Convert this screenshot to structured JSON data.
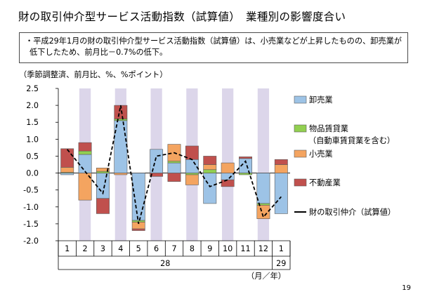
{
  "title": "財の取引仲介型サービス活動指数（試算値）　業種別の影響度合い",
  "summary": "・平成29年1月の財の取引仲介型サービス活動指数（試算値）は、小売業などが上昇したものの、卸売業が低下したため、前月比－0.7%の低下。",
  "unit_note": "（季節調整済、前月比、%、%ポイント）",
  "page_number": "19",
  "colors": {
    "wholesale": "#9dc3e6",
    "goods_leasing": "#92d050",
    "retail": "#f4a460",
    "real_estate": "#c0504d",
    "total_line": "#000000",
    "shade": "#dcd6ea",
    "border": "#5a5a5a"
  },
  "chart_data": {
    "type": "bar",
    "stacked": true,
    "categories": [
      "1",
      "2",
      "3",
      "4",
      "5",
      "6",
      "7",
      "8",
      "9",
      "10",
      "11",
      "12",
      "1"
    ],
    "year_labels": [
      {
        "label": "28",
        "span": [
          0,
          11
        ]
      },
      {
        "label": "29",
        "span": [
          12,
          12
        ]
      }
    ],
    "x_unit_label": "（月／年）",
    "ylim": [
      -2.0,
      2.5
    ],
    "yticks": [
      "2.5",
      "2.0",
      "1.5",
      "1.0",
      "0.5",
      "0.0",
      "-0.5",
      "-1.0",
      "-1.5",
      "-2.0"
    ],
    "shaded_categories": [
      1,
      3,
      5,
      7,
      9,
      11
    ],
    "series": [
      {
        "name": "卸売業",
        "type": "bar",
        "color_key": "wholesale",
        "values": [
          -0.05,
          0.55,
          -0.75,
          1.55,
          -1.4,
          0.7,
          0.3,
          0.4,
          -0.9,
          -0.2,
          0.43,
          -0.9,
          -1.2
        ]
      },
      {
        "name": "物品賃貸業",
        "name_extra": "（自動車賃貸業を含む）",
        "type": "bar",
        "color_key": "goods_leasing",
        "values": [
          0.02,
          0.1,
          0.05,
          0.05,
          -0.05,
          0.0,
          0.05,
          -0.05,
          0.1,
          0.0,
          -0.05,
          -0.05,
          0.0
        ]
      },
      {
        "name": "小売業",
        "type": "bar",
        "color_key": "retail",
        "values": [
          0.15,
          -0.8,
          0.1,
          -0.05,
          -0.2,
          0.0,
          0.5,
          -0.3,
          0.15,
          0.3,
          0.0,
          -0.4,
          0.25
        ]
      },
      {
        "name": "不動産業",
        "type": "bar",
        "color_key": "real_estate",
        "values": [
          0.55,
          0.25,
          -0.45,
          0.4,
          -0.05,
          -0.1,
          -0.25,
          0.4,
          0.25,
          -0.2,
          0.05,
          0.0,
          0.15
        ]
      },
      {
        "name": "財の取引仲介（試算値）",
        "type": "line",
        "color_key": "total_line",
        "dashed": true,
        "values": [
          0.7,
          0.05,
          -0.6,
          2.0,
          -1.5,
          0.5,
          0.6,
          0.4,
          -0.4,
          -0.2,
          0.35,
          -1.3,
          -0.7
        ]
      }
    ]
  }
}
